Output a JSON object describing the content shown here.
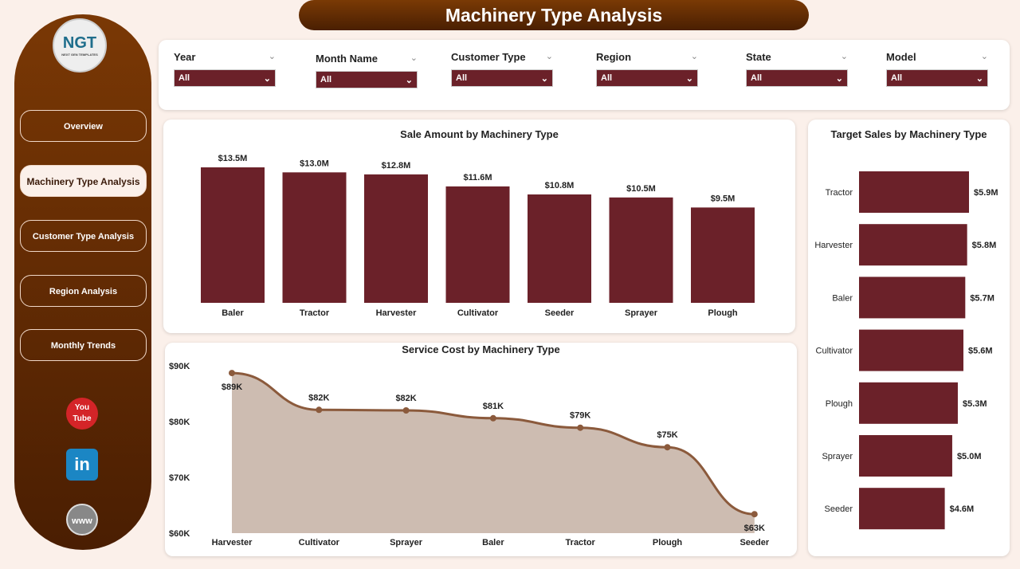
{
  "header": {
    "title": "Machinery Type Analysis"
  },
  "sidebar": {
    "logo": "NGT",
    "logo_sub": "NEXT GEN TEMPLATES",
    "items": [
      {
        "label": "Overview"
      },
      {
        "label": "Machinery Type Analysis"
      },
      {
        "label": "Customer Type Analysis"
      },
      {
        "label": "Region Analysis"
      },
      {
        "label": "Monthly Trends"
      }
    ],
    "social": [
      {
        "label": "You Tube",
        "icon": "youtube-icon"
      },
      {
        "label": "in",
        "icon": "linkedin-icon"
      },
      {
        "label": "www",
        "icon": "globe-icon"
      }
    ]
  },
  "filters": [
    {
      "label": "Year",
      "value": "All"
    },
    {
      "label": "Month Name",
      "value": "All"
    },
    {
      "label": "Customer Type",
      "value": "All"
    },
    {
      "label": "Region",
      "value": "All"
    },
    {
      "label": "State",
      "value": "All"
    },
    {
      "label": "Model",
      "value": "All"
    }
  ],
  "chart_data": [
    {
      "type": "bar",
      "title": "Sale Amount by Machinery Type",
      "categories": [
        "Baler",
        "Tractor",
        "Harvester",
        "Cultivator",
        "Seeder",
        "Sprayer",
        "Plough"
      ],
      "values": [
        13.5,
        13.0,
        12.8,
        11.6,
        10.8,
        10.5,
        9.5
      ],
      "labels": [
        "$13.5M",
        "$13.0M",
        "$12.8M",
        "$11.6M",
        "$10.8M",
        "$10.5M",
        "$9.5M"
      ],
      "unit": "$M",
      "color": "#6b2129"
    },
    {
      "type": "area",
      "title": "Service Cost by Machinery Type",
      "categories": [
        "Harvester",
        "Cultivator",
        "Sprayer",
        "Baler",
        "Tractor",
        "Plough",
        "Seeder"
      ],
      "values": [
        88.7,
        82.1,
        82.0,
        80.6,
        78.9,
        75.4,
        63.4
      ],
      "labels": [
        "$89K",
        "$82K",
        "$82K",
        "$81K",
        "$79K",
        "$75K",
        "$63K"
      ],
      "yticks": [
        "$90K",
        "$80K",
        "$70K",
        "$60K"
      ],
      "ylim": [
        60,
        90
      ],
      "unit": "$K",
      "color": "#8b5a3c"
    },
    {
      "type": "bar",
      "orientation": "horizontal",
      "title": "Target Sales by Machinery Type",
      "categories": [
        "Tractor",
        "Harvester",
        "Baler",
        "Cultivator",
        "Plough",
        "Sprayer",
        "Seeder"
      ],
      "values": [
        5.9,
        5.8,
        5.7,
        5.6,
        5.3,
        5.0,
        4.6
      ],
      "labels": [
        "$5.9M",
        "$5.8M",
        "$5.7M",
        "$5.6M",
        "$5.3M",
        "$5.0M",
        "$4.6M"
      ],
      "unit": "$M",
      "color": "#6b2129"
    }
  ]
}
